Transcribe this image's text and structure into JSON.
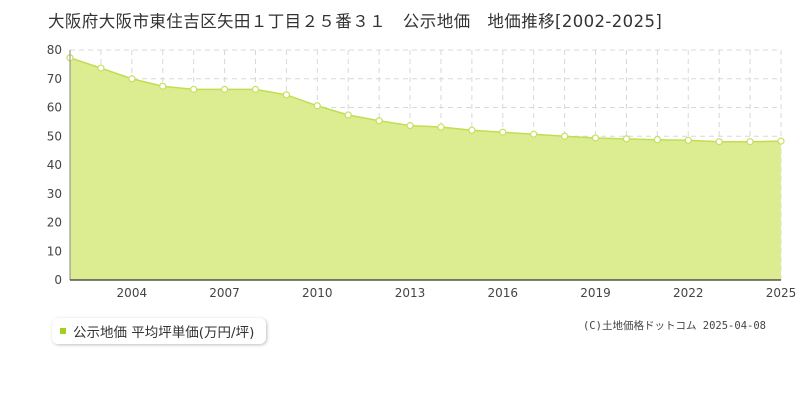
{
  "title": "大阪府大阪市東住吉区矢田１丁目２５番３１　公示地価　地価推移[2002-2025]",
  "legend_label": "公示地価 平均坪単価(万円/坪)",
  "credit": "(C)土地価格ドットコム 2025-04-08",
  "colors": {
    "fill": "#dcec90",
    "line": "#c0de50",
    "marker": "#c8e060",
    "legend": "#a0d020"
  },
  "chart_data": {
    "type": "area",
    "title": "",
    "xlabel": "",
    "ylabel": "",
    "series": [
      {
        "name": "公示地価 平均坪単価(万円/坪)",
        "x": [
          2002,
          2003,
          2004,
          2005,
          2006,
          2007,
          2008,
          2009,
          2010,
          2011,
          2012,
          2013,
          2014,
          2015,
          2016,
          2017,
          2018,
          2019,
          2020,
          2021,
          2022,
          2023,
          2024,
          2025
        ],
        "values": [
          77.3,
          73.7,
          70.0,
          67.4,
          66.3,
          66.3,
          66.3,
          64.4,
          60.6,
          57.4,
          55.4,
          53.7,
          53.2,
          52.1,
          51.4,
          50.7,
          50.0,
          49.4,
          49.1,
          48.8,
          48.6,
          48.1,
          48.1,
          48.3
        ]
      }
    ],
    "xlim": [
      2002,
      2025
    ],
    "ylim": [
      0,
      80
    ],
    "xticks": [
      "2004",
      "2007",
      "2010",
      "2013",
      "2016",
      "2019",
      "2022",
      "2025"
    ],
    "yticks": [
      "0",
      "10",
      "20",
      "30",
      "40",
      "50",
      "60",
      "70",
      "80"
    ],
    "grid": true,
    "legend_position": "bottom-left"
  }
}
